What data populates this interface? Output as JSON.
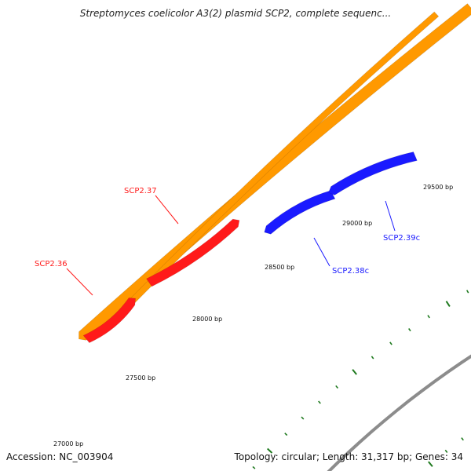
{
  "title": "Streptomyces coelicolor A3(2) plasmid SCP2, complete sequenc...",
  "footer": {
    "accession": "Accession: NC_003904",
    "summary": "Topology: circular; Length: 31,317 bp; Genes: 34"
  },
  "colors": {
    "backbone": "#8c8c8c",
    "tick": "#1f7a1f",
    "forward_gene": "#ff1a1a",
    "reverse_gene": "#1a1aff",
    "orange_feature": "#ff9900",
    "text": "#111111"
  },
  "scale": {
    "tick_labels": [
      "27000 bp",
      "27500 bp",
      "28000 bp",
      "28500 bp",
      "29000 bp",
      "29500 bp"
    ]
  },
  "genes": [
    {
      "label": "SCP2.36",
      "strand": "forward",
      "color_key": "forward_gene"
    },
    {
      "label": "SCP2.37",
      "strand": "forward",
      "color_key": "forward_gene"
    },
    {
      "label": "SCP2.38c",
      "strand": "reverse",
      "color_key": "reverse_gene"
    },
    {
      "label": "SCP2.39c",
      "strand": "reverse",
      "color_key": "reverse_gene"
    }
  ]
}
